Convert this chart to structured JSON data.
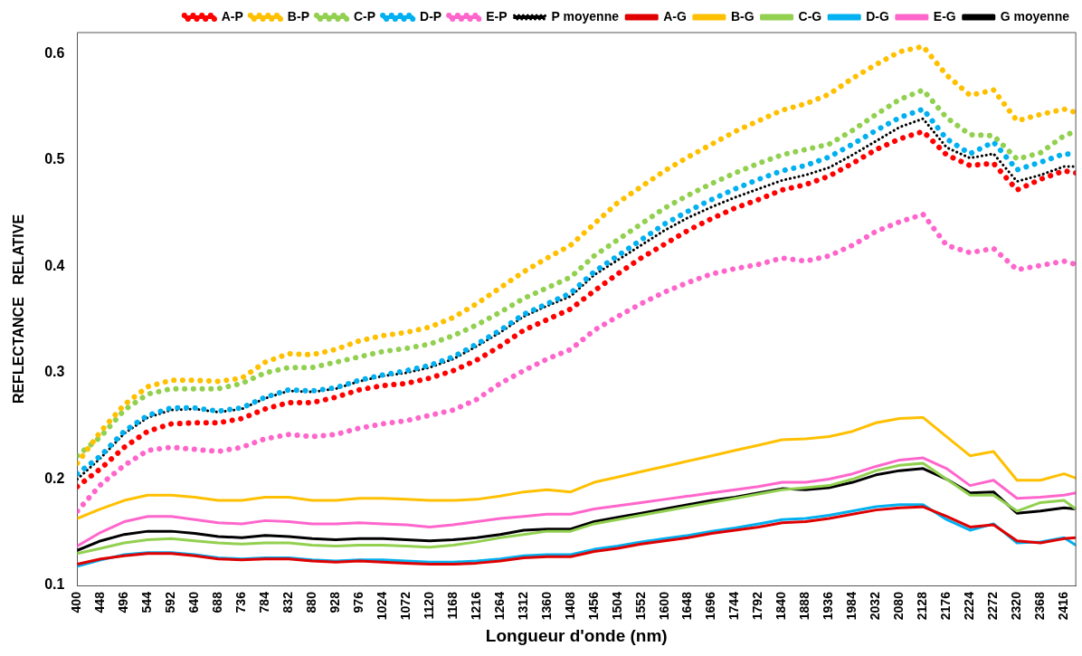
{
  "chart_data": {
    "type": "line",
    "xlabel": "Longueur d'onde (nm)",
    "ylabel": "REFLECTANCE   RELATIVE",
    "x": [
      400,
      448,
      496,
      544,
      592,
      640,
      688,
      736,
      784,
      832,
      880,
      928,
      976,
      1024,
      1072,
      1120,
      1168,
      1216,
      1264,
      1312,
      1360,
      1408,
      1456,
      1504,
      1552,
      1600,
      1648,
      1696,
      1744,
      1792,
      1840,
      1888,
      1936,
      1984,
      2032,
      2080,
      2128,
      2176,
      2224,
      2272,
      2320,
      2368,
      2416,
      2440
    ],
    "xlim": [
      400,
      2440
    ],
    "xticks": [
      400,
      448,
      496,
      544,
      592,
      640,
      688,
      736,
      784,
      832,
      880,
      928,
      976,
      1024,
      1072,
      1120,
      1168,
      1216,
      1264,
      1312,
      1360,
      1408,
      1456,
      1504,
      1552,
      1600,
      1648,
      1696,
      1744,
      1792,
      1840,
      1888,
      1936,
      1984,
      2032,
      2080,
      2128,
      2176,
      2224,
      2272,
      2320,
      2368,
      2416
    ],
    "ylim": [
      0.1,
      0.62
    ],
    "yticks": [
      0.1,
      0.2,
      0.3,
      0.4,
      0.5,
      0.6
    ],
    "grid": false,
    "legend": "top",
    "marker": "none",
    "series": [
      {
        "name": "A-P",
        "color": "#ff0000",
        "line_style": "dotted",
        "values": [
          0.193,
          0.21,
          0.23,
          0.245,
          0.252,
          0.253,
          0.253,
          0.257,
          0.266,
          0.272,
          0.272,
          0.277,
          0.284,
          0.288,
          0.29,
          0.295,
          0.302,
          0.312,
          0.325,
          0.34,
          0.35,
          0.36,
          0.377,
          0.393,
          0.408,
          0.421,
          0.434,
          0.445,
          0.455,
          0.463,
          0.472,
          0.477,
          0.485,
          0.497,
          0.51,
          0.52,
          0.527,
          0.505,
          0.495,
          0.497,
          0.472,
          0.482,
          0.49,
          0.488
        ]
      },
      {
        "name": "B-P",
        "color": "#ffc000",
        "line_style": "dotted",
        "values": [
          0.215,
          0.245,
          0.27,
          0.287,
          0.293,
          0.293,
          0.292,
          0.295,
          0.31,
          0.318,
          0.317,
          0.322,
          0.33,
          0.335,
          0.338,
          0.343,
          0.352,
          0.365,
          0.38,
          0.395,
          0.408,
          0.42,
          0.44,
          0.46,
          0.475,
          0.49,
          0.503,
          0.515,
          0.527,
          0.537,
          0.547,
          0.553,
          0.562,
          0.577,
          0.59,
          0.602,
          0.607,
          0.58,
          0.561,
          0.566,
          0.537,
          0.543,
          0.548,
          0.545
        ]
      },
      {
        "name": "C-P",
        "color": "#92d050",
        "line_style": "dotted",
        "values": [
          0.222,
          0.24,
          0.265,
          0.28,
          0.285,
          0.285,
          0.285,
          0.29,
          0.3,
          0.305,
          0.305,
          0.31,
          0.315,
          0.32,
          0.323,
          0.327,
          0.335,
          0.345,
          0.357,
          0.37,
          0.38,
          0.39,
          0.41,
          0.425,
          0.44,
          0.455,
          0.467,
          0.478,
          0.488,
          0.497,
          0.505,
          0.51,
          0.515,
          0.528,
          0.543,
          0.557,
          0.566,
          0.54,
          0.524,
          0.523,
          0.501,
          0.507,
          0.523,
          0.527
        ]
      },
      {
        "name": "D-P",
        "color": "#00b0f0",
        "line_style": "dotted",
        "values": [
          0.205,
          0.222,
          0.245,
          0.26,
          0.267,
          0.267,
          0.264,
          0.267,
          0.277,
          0.284,
          0.283,
          0.286,
          0.293,
          0.298,
          0.302,
          0.307,
          0.315,
          0.327,
          0.34,
          0.355,
          0.365,
          0.375,
          0.395,
          0.41,
          0.425,
          0.44,
          0.452,
          0.463,
          0.473,
          0.482,
          0.49,
          0.495,
          0.503,
          0.515,
          0.528,
          0.54,
          0.548,
          0.52,
          0.506,
          0.517,
          0.491,
          0.498,
          0.506,
          0.505
        ]
      },
      {
        "name": "E-P",
        "color": "#ff66cc",
        "line_style": "dotted",
        "values": [
          0.17,
          0.195,
          0.213,
          0.227,
          0.23,
          0.228,
          0.226,
          0.23,
          0.238,
          0.242,
          0.24,
          0.242,
          0.248,
          0.252,
          0.255,
          0.26,
          0.265,
          0.275,
          0.29,
          0.302,
          0.313,
          0.322,
          0.34,
          0.353,
          0.365,
          0.376,
          0.385,
          0.393,
          0.398,
          0.402,
          0.408,
          0.405,
          0.41,
          0.42,
          0.433,
          0.442,
          0.449,
          0.42,
          0.413,
          0.417,
          0.397,
          0.401,
          0.405,
          0.402
        ]
      },
      {
        "name": "P moyenne",
        "color": "#000000",
        "line_style": "dotted",
        "values": [
          0.2,
          0.22,
          0.243,
          0.258,
          0.265,
          0.266,
          0.263,
          0.266,
          0.276,
          0.283,
          0.282,
          0.285,
          0.292,
          0.297,
          0.3,
          0.305,
          0.313,
          0.325,
          0.338,
          0.353,
          0.363,
          0.372,
          0.392,
          0.406,
          0.42,
          0.434,
          0.446,
          0.456,
          0.465,
          0.473,
          0.481,
          0.486,
          0.493,
          0.505,
          0.518,
          0.531,
          0.539,
          0.512,
          0.502,
          0.506,
          0.48,
          0.486,
          0.494,
          0.494
        ]
      },
      {
        "name": "A-G",
        "color": "#e00000",
        "line_style": "solid",
        "values": [
          0.12,
          0.125,
          0.128,
          0.13,
          0.13,
          0.128,
          0.125,
          0.124,
          0.125,
          0.125,
          0.123,
          0.122,
          0.123,
          0.122,
          0.121,
          0.12,
          0.12,
          0.121,
          0.123,
          0.126,
          0.127,
          0.127,
          0.132,
          0.135,
          0.139,
          0.142,
          0.145,
          0.149,
          0.152,
          0.155,
          0.159,
          0.16,
          0.163,
          0.167,
          0.171,
          0.173,
          0.174,
          0.165,
          0.155,
          0.157,
          0.142,
          0.14,
          0.144,
          0.145
        ]
      },
      {
        "name": "B-G",
        "color": "#ffc000",
        "line_style": "solid",
        "values": [
          0.163,
          0.172,
          0.18,
          0.185,
          0.185,
          0.183,
          0.18,
          0.18,
          0.183,
          0.183,
          0.18,
          0.18,
          0.182,
          0.182,
          0.181,
          0.18,
          0.18,
          0.181,
          0.184,
          0.188,
          0.19,
          0.188,
          0.197,
          0.202,
          0.207,
          0.212,
          0.217,
          0.222,
          0.227,
          0.232,
          0.237,
          0.238,
          0.24,
          0.245,
          0.253,
          0.257,
          0.258,
          0.24,
          0.222,
          0.226,
          0.199,
          0.199,
          0.205,
          0.201
        ]
      },
      {
        "name": "C-G",
        "color": "#92d050",
        "line_style": "solid",
        "values": [
          0.13,
          0.135,
          0.14,
          0.143,
          0.144,
          0.142,
          0.14,
          0.139,
          0.14,
          0.14,
          0.138,
          0.137,
          0.138,
          0.138,
          0.137,
          0.136,
          0.138,
          0.141,
          0.145,
          0.148,
          0.151,
          0.151,
          0.158,
          0.162,
          0.166,
          0.17,
          0.174,
          0.178,
          0.182,
          0.186,
          0.19,
          0.192,
          0.194,
          0.2,
          0.208,
          0.213,
          0.215,
          0.2,
          0.185,
          0.185,
          0.17,
          0.178,
          0.18,
          0.172
        ]
      },
      {
        "name": "D-G",
        "color": "#00b0f0",
        "line_style": "solid",
        "values": [
          0.118,
          0.124,
          0.129,
          0.131,
          0.131,
          0.129,
          0.126,
          0.125,
          0.126,
          0.126,
          0.124,
          0.123,
          0.124,
          0.124,
          0.123,
          0.122,
          0.122,
          0.123,
          0.125,
          0.128,
          0.129,
          0.129,
          0.134,
          0.137,
          0.141,
          0.144,
          0.147,
          0.151,
          0.154,
          0.158,
          0.162,
          0.163,
          0.166,
          0.17,
          0.174,
          0.176,
          0.176,
          0.162,
          0.152,
          0.158,
          0.14,
          0.141,
          0.145,
          0.138
        ]
      },
      {
        "name": "E-G",
        "color": "#ff66cc",
        "line_style": "solid",
        "values": [
          0.137,
          0.15,
          0.16,
          0.165,
          0.165,
          0.162,
          0.159,
          0.158,
          0.161,
          0.16,
          0.158,
          0.158,
          0.159,
          0.158,
          0.157,
          0.155,
          0.157,
          0.16,
          0.163,
          0.165,
          0.167,
          0.167,
          0.172,
          0.175,
          0.178,
          0.181,
          0.184,
          0.187,
          0.19,
          0.193,
          0.197,
          0.197,
          0.2,
          0.205,
          0.212,
          0.218,
          0.22,
          0.21,
          0.194,
          0.199,
          0.182,
          0.183,
          0.185,
          0.187
        ]
      },
      {
        "name": "G moyenne",
        "color": "#000000",
        "line_style": "solid",
        "values": [
          0.133,
          0.142,
          0.148,
          0.151,
          0.151,
          0.149,
          0.146,
          0.145,
          0.147,
          0.146,
          0.144,
          0.143,
          0.144,
          0.144,
          0.143,
          0.142,
          0.143,
          0.145,
          0.148,
          0.152,
          0.153,
          0.153,
          0.16,
          0.164,
          0.168,
          0.172,
          0.176,
          0.18,
          0.183,
          0.187,
          0.191,
          0.19,
          0.192,
          0.197,
          0.204,
          0.208,
          0.21,
          0.2,
          0.187,
          0.188,
          0.168,
          0.17,
          0.173,
          0.172
        ]
      }
    ]
  }
}
